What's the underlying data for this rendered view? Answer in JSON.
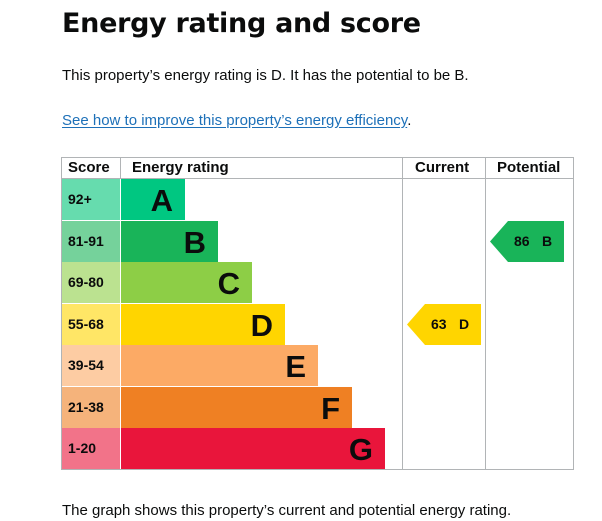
{
  "heading": "Energy rating and score",
  "summary": "This property’s energy rating is D. It has the potential to be B.",
  "improve_link": "See how to improve this property’s energy efficiency",
  "improve_link_suffix": ".",
  "chart_data": {
    "type": "table",
    "columns": [
      "Score",
      "Energy rating",
      "Current",
      "Potential"
    ],
    "bands": [
      {
        "score": "92+",
        "letter": "A",
        "color": "#00c781",
        "score_bg": "#66dcae"
      },
      {
        "score": "81-91",
        "letter": "B",
        "color": "#19b459",
        "score_bg": "#75d29b"
      },
      {
        "score": "69-80",
        "letter": "C",
        "color": "#8dce46",
        "score_bg": "#bbe290"
      },
      {
        "score": "55-68",
        "letter": "D",
        "color": "#ffd500",
        "score_bg": "#ffe666"
      },
      {
        "score": "39-54",
        "letter": "E",
        "color": "#fcaa65",
        "score_bg": "#fdcca3"
      },
      {
        "score": "21-38",
        "letter": "F",
        "color": "#ef8023",
        "score_bg": "#f5b37b"
      },
      {
        "score": "1-20",
        "letter": "G",
        "color": "#e9153b",
        "score_bg": "#f27389"
      }
    ],
    "current": {
      "value": "63",
      "letter": "D",
      "color": "#ffd500"
    },
    "potential": {
      "value": "86",
      "letter": "B",
      "color": "#19b459"
    }
  },
  "footer": "The graph shows this property’s current and potential energy rating."
}
